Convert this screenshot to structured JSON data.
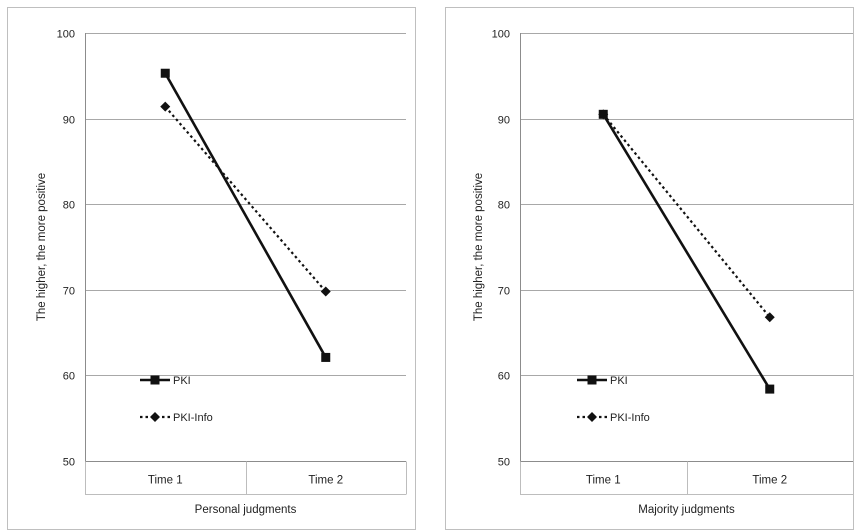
{
  "chart_data": [
    {
      "type": "line",
      "title": "",
      "xlabel": "Personal judgments",
      "ylabel": "The higher, the more positive",
      "ylim": [
        50,
        100
      ],
      "yticks": [
        50,
        60,
        70,
        80,
        90,
        100
      ],
      "grid": true,
      "legend_position": "bottom-left",
      "categories": [
        "Time 1",
        "Time 2"
      ],
      "series": [
        {
          "name": "PKI",
          "values": [
            95.3,
            62.1
          ],
          "line_style": "solid",
          "marker": "square",
          "color": "#111111"
        },
        {
          "name": "PKI-Info",
          "values": [
            91.4,
            69.8
          ],
          "line_style": "dotted",
          "marker": "diamond",
          "color": "#111111"
        }
      ]
    },
    {
      "type": "line",
      "title": "",
      "xlabel": "Majority judgments",
      "ylabel": "The higher, the more positive",
      "ylim": [
        50,
        100
      ],
      "yticks": [
        50,
        60,
        70,
        80,
        90,
        100
      ],
      "grid": true,
      "legend_position": "bottom-left",
      "categories": [
        "Time 1",
        "Time 2"
      ],
      "series": [
        {
          "name": "PKI",
          "values": [
            90.5,
            58.4
          ],
          "line_style": "solid",
          "marker": "square",
          "color": "#111111"
        },
        {
          "name": "PKI-Info",
          "values": [
            90.5,
            66.8
          ],
          "line_style": "dotted",
          "marker": "diamond",
          "color": "#111111"
        }
      ]
    }
  ]
}
